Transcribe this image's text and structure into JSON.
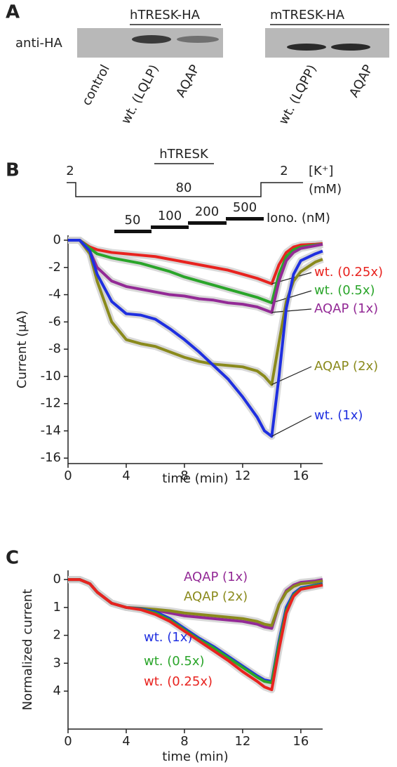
{
  "panel_labels": [
    "A",
    "B",
    "C"
  ],
  "blot": {
    "row_label": "anti-HA",
    "groups": [
      {
        "title": "hTRESK-HA",
        "lanes": [
          "control",
          "wt. (LQLP)",
          "AQAP"
        ]
      },
      {
        "title": "mTRESK-HA",
        "lanes": [
          "wt. (LQPP)",
          "AQAP"
        ]
      }
    ]
  },
  "protocol": {
    "title": "hTRESK",
    "k_levels": [
      "2",
      "80",
      "2"
    ],
    "k_label": [
      "[K⁺]",
      "(mM)"
    ],
    "iono_levels": [
      "50",
      "100",
      "200",
      "500"
    ],
    "iono_label": "Iono. (nM)"
  },
  "chart_data": [
    {
      "type": "line",
      "x_label": "time (min)",
      "y_label": "Current (μA)",
      "x": [
        0,
        0.8,
        1.5,
        2,
        3,
        4,
        5,
        6,
        7,
        8,
        9,
        10,
        11,
        12,
        13,
        13.5,
        14,
        14.5,
        15,
        15.5,
        16,
        17,
        17.5
      ],
      "xlim": [
        0,
        17.5
      ],
      "xticks": [
        0,
        4,
        8,
        12,
        16
      ],
      "ylim": [
        -16.4,
        0.36
      ],
      "yticks": [
        0,
        -2,
        -4,
        -6,
        -8,
        -10,
        -12,
        -14,
        -16
      ],
      "series": [
        {
          "name": "wt. (0.25x)",
          "color": "#e8231f",
          "values": [
            0,
            0,
            -0.5,
            -0.7,
            -0.9,
            -1,
            -1.1,
            -1.2,
            -1.4,
            -1.6,
            -1.8,
            -2,
            -2.2,
            -2.5,
            -2.8,
            -3,
            -3.2,
            -1.8,
            -0.9,
            -0.5,
            -0.35,
            -0.3,
            -0.25
          ]
        },
        {
          "name": "wt. (0.5x)",
          "color": "#2aa52a",
          "values": [
            0,
            0,
            -0.6,
            -1,
            -1.3,
            -1.5,
            -1.7,
            -2,
            -2.3,
            -2.7,
            -3,
            -3.3,
            -3.6,
            -3.9,
            -4.2,
            -4.4,
            -4.6,
            -2.5,
            -1.2,
            -0.7,
            -0.5,
            -0.35,
            -0.3
          ]
        },
        {
          "name": "AQAP (1x)",
          "color": "#932a96",
          "values": [
            0,
            0,
            -0.8,
            -2,
            -3,
            -3.4,
            -3.6,
            -3.8,
            -4,
            -4.1,
            -4.3,
            -4.4,
            -4.6,
            -4.7,
            -4.9,
            -5.1,
            -5.3,
            -3,
            -1.5,
            -0.9,
            -0.6,
            -0.4,
            -0.3
          ]
        },
        {
          "name": "AQAP (2x)",
          "color": "#8a8a1c",
          "values": [
            0,
            0,
            -1,
            -3,
            -6,
            -7.3,
            -7.6,
            -7.8,
            -8.2,
            -8.6,
            -8.9,
            -9.1,
            -9.2,
            -9.3,
            -9.6,
            -10,
            -10.6,
            -7.5,
            -4.5,
            -3,
            -2.3,
            -1.6,
            -1.4
          ]
        },
        {
          "name": "wt. (1x)",
          "color": "#1f2fe0",
          "values": [
            0,
            0,
            -0.8,
            -2.5,
            -4.5,
            -5.4,
            -5.5,
            -5.8,
            -6.5,
            -7.3,
            -8.2,
            -9.2,
            -10.2,
            -11.5,
            -13,
            -14,
            -14.4,
            -10,
            -5,
            -2.5,
            -1.5,
            -1,
            -0.8
          ]
        }
      ]
    },
    {
      "type": "line",
      "x_label": "time (min)",
      "y_label": "Normalized current",
      "x": [
        0,
        0.8,
        1.5,
        2,
        3,
        4,
        5,
        6,
        7,
        8,
        9,
        10,
        11,
        12,
        13,
        13.5,
        14,
        14.5,
        15,
        15.5,
        16,
        17,
        17.5
      ],
      "xlim": [
        0,
        17.5
      ],
      "xticks": [
        0,
        4,
        8,
        12,
        16
      ],
      "ylim": [
        5.36,
        -0.33
      ],
      "yticks": [
        0,
        1,
        2,
        3,
        4
      ],
      "series": [
        {
          "name": "AQAP (1x)",
          "color": "#932a96",
          "values": [
            0,
            0,
            0.15,
            0.45,
            0.85,
            1,
            1.05,
            1.1,
            1.2,
            1.3,
            1.35,
            1.4,
            1.45,
            1.5,
            1.6,
            1.7,
            1.75,
            0.9,
            0.4,
            0.2,
            0.1,
            0.05,
            0
          ]
        },
        {
          "name": "AQAP (2x)",
          "color": "#8a8a1c",
          "values": [
            0,
            0,
            0.15,
            0.45,
            0.85,
            1,
            1.03,
            1.07,
            1.12,
            1.2,
            1.25,
            1.3,
            1.35,
            1.4,
            1.5,
            1.6,
            1.65,
            0.9,
            0.45,
            0.25,
            0.15,
            0.1,
            0.05
          ]
        },
        {
          "name": "wt. (1x)",
          "color": "#1f2fe0",
          "values": [
            0,
            0,
            0.15,
            0.45,
            0.85,
            1,
            1.05,
            1.15,
            1.4,
            1.75,
            2.1,
            2.4,
            2.75,
            3.1,
            3.45,
            3.6,
            3.65,
            2.2,
            1,
            0.5,
            0.3,
            0.2,
            0.15
          ]
        },
        {
          "name": "wt. (0.5x)",
          "color": "#2aa52a",
          "values": [
            0,
            0,
            0.15,
            0.45,
            0.85,
            1,
            1.07,
            1.2,
            1.45,
            1.8,
            2.15,
            2.45,
            2.8,
            3.15,
            3.5,
            3.65,
            3.7,
            2.3,
            1.1,
            0.55,
            0.33,
            0.22,
            0.18
          ]
        },
        {
          "name": "wt. (0.25x)",
          "color": "#e8231f",
          "values": [
            0,
            0,
            0.15,
            0.45,
            0.85,
            1,
            1.08,
            1.25,
            1.5,
            1.85,
            2.2,
            2.55,
            2.9,
            3.3,
            3.65,
            3.85,
            3.95,
            2.5,
            1.2,
            0.6,
            0.35,
            0.25,
            0.2
          ]
        }
      ]
    }
  ]
}
